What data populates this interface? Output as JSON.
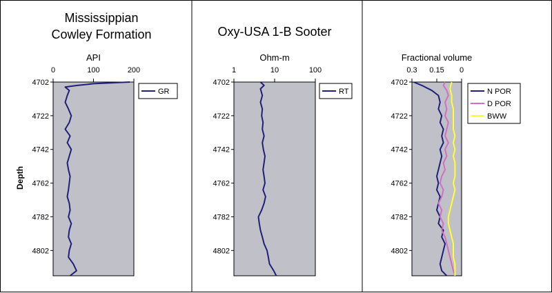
{
  "titles": {
    "panel1_line1": "Mississippian",
    "panel1_line2": "Cowley Formation",
    "panel2": "Oxy-USA 1-B Sooter"
  },
  "depth_axis_label": "Depth",
  "colors": {
    "plot_bg": "#c0c0c8",
    "gr": "#1f1f7a",
    "rt": "#1f1f7a",
    "npor": "#1f1f7a",
    "dpor": "#d070c0",
    "bww": "#ffff33",
    "frame": "#000000"
  },
  "chart_data": [
    {
      "type": "line",
      "axis_label": "API",
      "xlim": [
        0,
        200
      ],
      "xticks": [
        "0",
        "100",
        "200"
      ],
      "xtick_values": [
        0,
        100,
        200
      ],
      "x_scale": "linear",
      "ylim": [
        4702,
        4817
      ],
      "yticks": [
        "4702",
        "4722",
        "4742",
        "4762",
        "4782",
        "4802"
      ],
      "ytick_values": [
        4702,
        4722,
        4742,
        4762,
        4782,
        4802
      ],
      "legend_position": "top-right",
      "series": [
        {
          "name": "GR",
          "color_key": "gr",
          "depth": [
            4702,
            4703,
            4704,
            4705,
            4707,
            4710,
            4714,
            4718,
            4722,
            4726,
            4730,
            4734,
            4738,
            4742,
            4746,
            4750,
            4754,
            4758,
            4762,
            4766,
            4770,
            4774,
            4778,
            4782,
            4786,
            4790,
            4794,
            4798,
            4802,
            4806,
            4810,
            4814,
            4817
          ],
          "values": [
            190,
            100,
            60,
            30,
            40,
            35,
            30,
            38,
            45,
            40,
            30,
            42,
            35,
            45,
            40,
            35,
            38,
            42,
            40,
            38,
            35,
            40,
            42,
            38,
            45,
            40,
            38,
            45,
            40,
            38,
            50,
            58,
            42
          ]
        }
      ]
    },
    {
      "type": "line",
      "axis_label": "Ohm-m",
      "xlim": [
        1,
        100
      ],
      "xticks": [
        "1",
        "10",
        "100"
      ],
      "xtick_values": [
        1,
        10,
        100
      ],
      "x_scale": "log",
      "ylim": [
        4702,
        4817
      ],
      "yticks": [
        "4702",
        "4722",
        "4742",
        "4762",
        "4782",
        "4802"
      ],
      "ytick_values": [
        4702,
        4722,
        4742,
        4762,
        4782,
        4802
      ],
      "legend_position": "top-right",
      "series": [
        {
          "name": "RT",
          "color_key": "rt",
          "depth": [
            4702,
            4704,
            4706,
            4710,
            4714,
            4718,
            4722,
            4726,
            4730,
            4734,
            4738,
            4742,
            4746,
            4750,
            4754,
            4758,
            4762,
            4766,
            4770,
            4774,
            4778,
            4782,
            4786,
            4790,
            4794,
            4798,
            4802,
            4806,
            4810,
            4814,
            4817
          ],
          "values": [
            4.5,
            5.5,
            4.5,
            5.0,
            4.5,
            5.0,
            4.8,
            5.2,
            5.0,
            5.5,
            5.0,
            5.3,
            5.8,
            5.5,
            5.2,
            5.5,
            5.8,
            5.2,
            6.0,
            5.5,
            4.8,
            4.0,
            4.2,
            4.5,
            5.0,
            5.5,
            6.5,
            7.0,
            7.5,
            9.5,
            11
          ]
        }
      ]
    },
    {
      "type": "line",
      "axis_label": "Fractional volume",
      "xlim": [
        0.3,
        0
      ],
      "xticks": [
        "0.3",
        "0.15",
        "0"
      ],
      "xtick_values": [
        0.3,
        0.15,
        0
      ],
      "x_scale": "linear",
      "ylim": [
        4702,
        4817
      ],
      "yticks": [
        "4702",
        "4722",
        "4742",
        "4762",
        "4782",
        "4802"
      ],
      "ytick_values": [
        4702,
        4722,
        4742,
        4762,
        4782,
        4802
      ],
      "legend_position": "top-right",
      "series": [
        {
          "name": "N POR",
          "color_key": "npor",
          "depth": [
            4702,
            4704,
            4707,
            4710,
            4714,
            4718,
            4722,
            4726,
            4730,
            4734,
            4738,
            4742,
            4746,
            4750,
            4754,
            4758,
            4762,
            4766,
            4770,
            4774,
            4778,
            4782,
            4786,
            4790,
            4794,
            4798,
            4802,
            4806,
            4810,
            4814,
            4817
          ],
          "values": [
            0.29,
            0.24,
            0.18,
            0.14,
            0.13,
            0.14,
            0.12,
            0.13,
            0.11,
            0.12,
            0.11,
            0.13,
            0.12,
            0.13,
            0.14,
            0.15,
            0.14,
            0.15,
            0.13,
            0.14,
            0.15,
            0.13,
            0.14,
            0.11,
            0.12,
            0.1,
            0.11,
            0.12,
            0.13,
            0.12,
            0.09
          ]
        },
        {
          "name": "D POR",
          "color_key": "dpor",
          "depth": [
            4702,
            4704,
            4707,
            4710,
            4714,
            4718,
            4722,
            4726,
            4730,
            4734,
            4738,
            4742,
            4746,
            4750,
            4754,
            4758,
            4762,
            4766,
            4770,
            4774,
            4778,
            4782,
            4786,
            4790,
            4794,
            4798,
            4802,
            4806,
            4810,
            4814,
            4817
          ],
          "values": [
            0.1,
            0.11,
            0.09,
            0.08,
            0.1,
            0.09,
            0.1,
            0.08,
            0.09,
            0.1,
            0.08,
            0.1,
            0.09,
            0.11,
            0.1,
            0.12,
            0.13,
            0.11,
            0.12,
            0.14,
            0.12,
            0.13,
            0.11,
            0.12,
            0.1,
            0.09,
            0.08,
            0.07,
            0.06,
            0.05,
            0.04
          ]
        },
        {
          "name": "BWW",
          "color_key": "bww",
          "depth": [
            4702,
            4706,
            4710,
            4714,
            4718,
            4722,
            4726,
            4730,
            4734,
            4738,
            4742,
            4746,
            4750,
            4754,
            4758,
            4762,
            4766,
            4770,
            4774,
            4778,
            4782,
            4786,
            4790,
            4794,
            4798,
            4802,
            4806,
            4810,
            4814,
            4817
          ],
          "values": [
            0.06,
            0.07,
            0.06,
            0.06,
            0.05,
            0.05,
            0.05,
            0.05,
            0.04,
            0.05,
            0.04,
            0.05,
            0.04,
            0.04,
            0.04,
            0.05,
            0.04,
            0.05,
            0.06,
            0.07,
            0.08,
            0.08,
            0.07,
            0.06,
            0.05,
            0.05,
            0.05,
            0.04,
            0.04,
            0.04
          ]
        }
      ]
    }
  ]
}
